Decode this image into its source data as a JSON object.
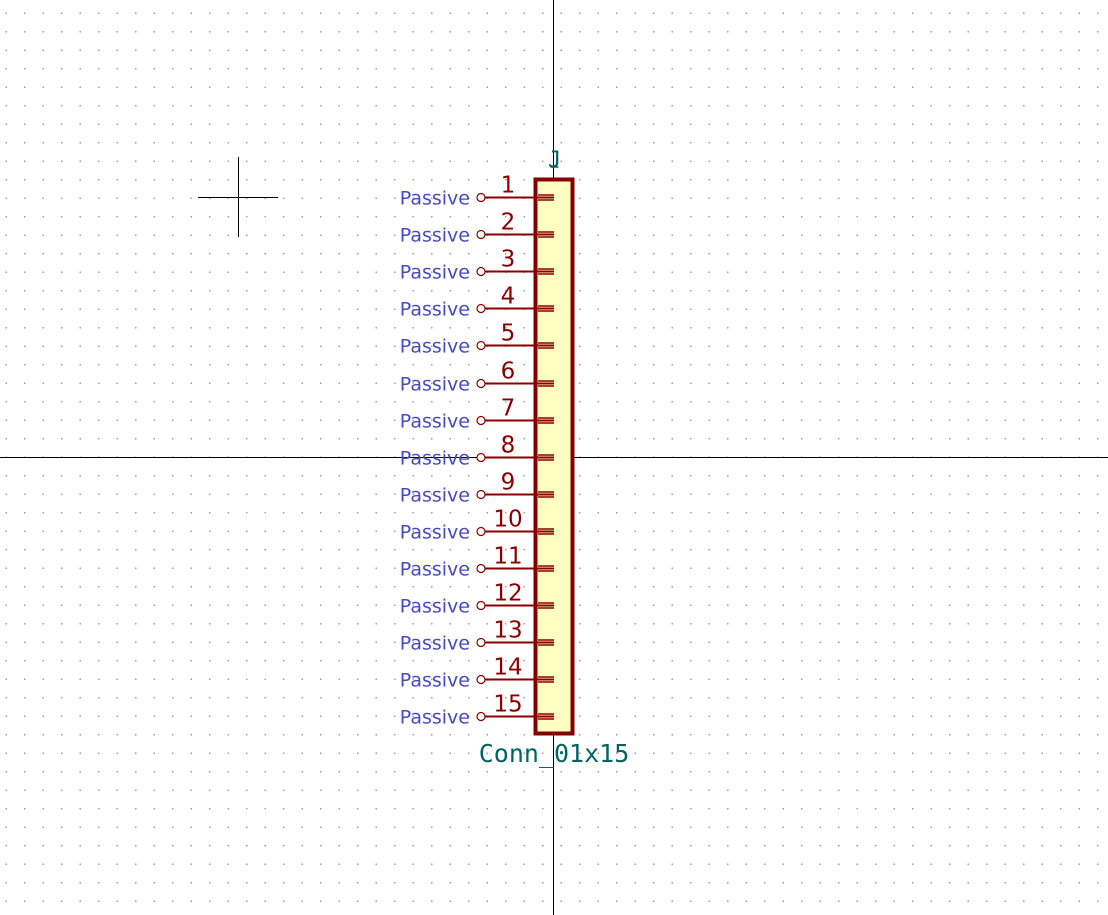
{
  "symbol": {
    "reference": "J",
    "value": "Conn_01x15",
    "pins": [
      {
        "number": "1",
        "type": "Passive"
      },
      {
        "number": "2",
        "type": "Passive"
      },
      {
        "number": "3",
        "type": "Passive"
      },
      {
        "number": "4",
        "type": "Passive"
      },
      {
        "number": "5",
        "type": "Passive"
      },
      {
        "number": "6",
        "type": "Passive"
      },
      {
        "number": "7",
        "type": "Passive"
      },
      {
        "number": "8",
        "type": "Passive"
      },
      {
        "number": "9",
        "type": "Passive"
      },
      {
        "number": "10",
        "type": "Passive"
      },
      {
        "number": "11",
        "type": "Passive"
      },
      {
        "number": "12",
        "type": "Passive"
      },
      {
        "number": "13",
        "type": "Passive"
      },
      {
        "number": "14",
        "type": "Passive"
      },
      {
        "number": "15",
        "type": "Passive"
      }
    ]
  },
  "colors": {
    "body_fill": "#ffffc2",
    "body_stroke": "#840000",
    "pin_line": "#8a0000",
    "pin_type_text": "#4848c4",
    "field_text": "#006464",
    "axis_line": "#000000",
    "grid_dot": "#a9a9a9"
  }
}
